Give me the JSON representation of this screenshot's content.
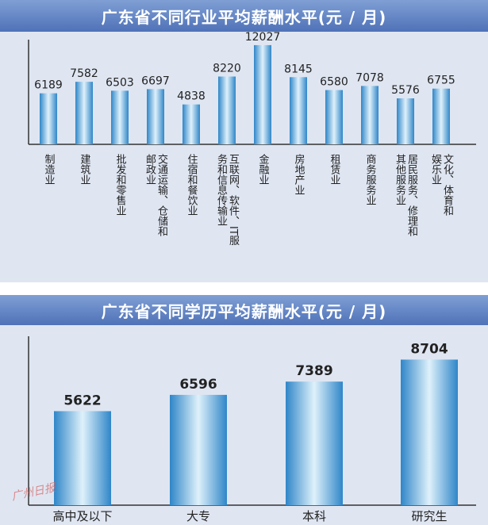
{
  "colors": {
    "header_start": "#7f9fd4",
    "header_end": "#4f72b8",
    "panel_bg": "#dfe6f2",
    "bar_edge": "#2f86c8",
    "bar_center": "#dff1fb"
  },
  "watermark": "广州日报",
  "chart_data": [
    {
      "type": "bar",
      "title": "广东省不同行业平均薪酬水平(元 / 月)",
      "categories": [
        "制造业",
        "建筑业",
        "批发和零售业",
        "交通运输、仓储和邮政业",
        "住宿和餐饮业",
        "互联网、软件、IT服务和信息传输业",
        "金融业",
        "房地产业",
        "租赁业",
        "商务服务业",
        "居民服务、修理和其他服务业",
        "文化、体育和娱乐业"
      ],
      "category_lines": [
        [
          "制造业"
        ],
        [
          "建筑业"
        ],
        [
          "批发和零售业"
        ],
        [
          "交通运输、仓储和",
          "邮政业"
        ],
        [
          "住宿和餐饮业"
        ],
        [
          "互联网、软件、IT服",
          "务和信息传输业"
        ],
        [
          "金融业"
        ],
        [
          "房地产业"
        ],
        [
          "租赁业"
        ],
        [
          "商务服务业"
        ],
        [
          "居民服务、修理和",
          "其他服务业"
        ],
        [
          "文化、体育和",
          "娱乐业"
        ]
      ],
      "values": [
        6189,
        7582,
        6503,
        6697,
        4838,
        8220,
        12027,
        8145,
        6580,
        7078,
        5576,
        6755
      ],
      "ylim": [
        0,
        12500
      ],
      "grid": false,
      "legend": "none"
    },
    {
      "type": "bar",
      "title": "广东省不同学历平均薪酬水平(元 / 月)",
      "categories": [
        "高中及以下",
        "大专",
        "本科",
        "研究生"
      ],
      "values": [
        5622,
        6596,
        7389,
        8704
      ],
      "ylim": [
        0,
        10100
      ],
      "grid": false,
      "legend": "none"
    }
  ]
}
